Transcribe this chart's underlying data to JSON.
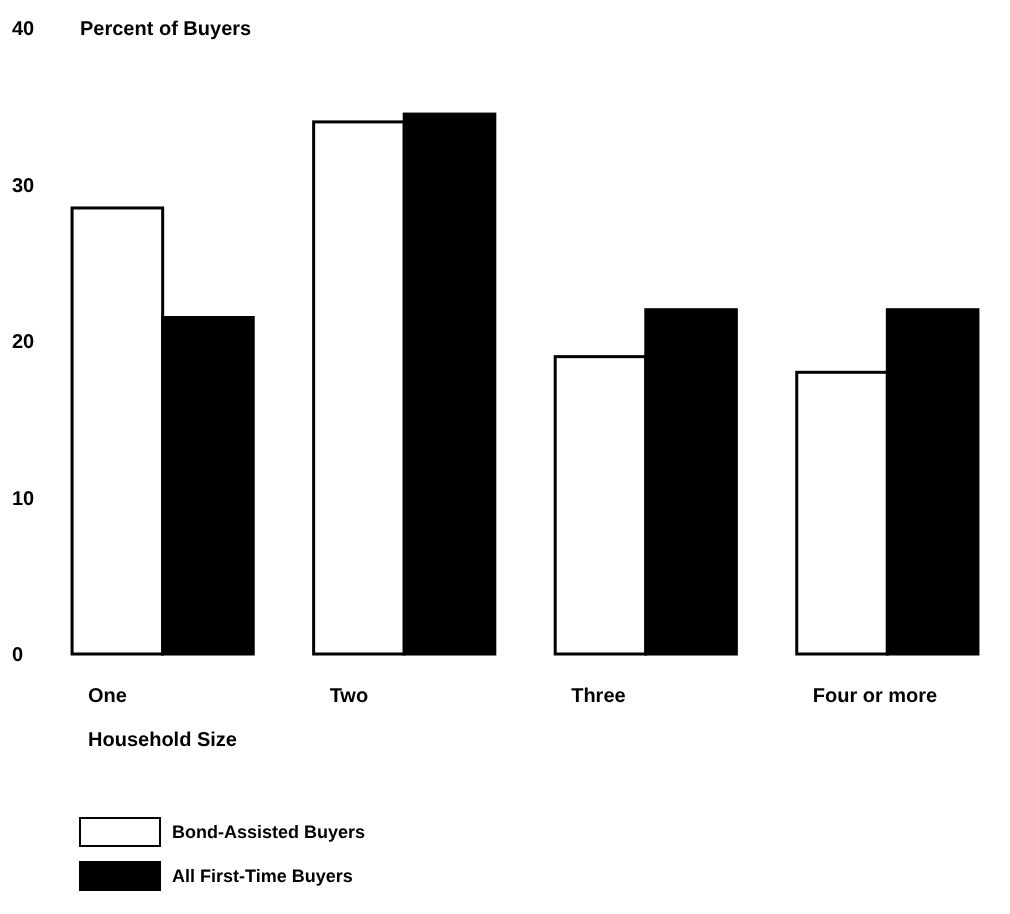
{
  "chart_data": {
    "type": "bar",
    "ylabel": "Percent of Buyers",
    "xlabel": "Household Size",
    "categories": [
      "One",
      "Two",
      "Three",
      "Four or more"
    ],
    "series": [
      {
        "name": "Bond-Assisted Buyers",
        "color": "#ffffff",
        "values": [
          28.5,
          34,
          19,
          18
        ]
      },
      {
        "name": "All First-Time Buyers",
        "color": "#000000",
        "values": [
          21.5,
          34.5,
          22,
          22
        ]
      }
    ],
    "ylim": [
      0,
      40
    ],
    "yticks": [
      0,
      10,
      20,
      30,
      40
    ],
    "legend": "bottom left"
  }
}
